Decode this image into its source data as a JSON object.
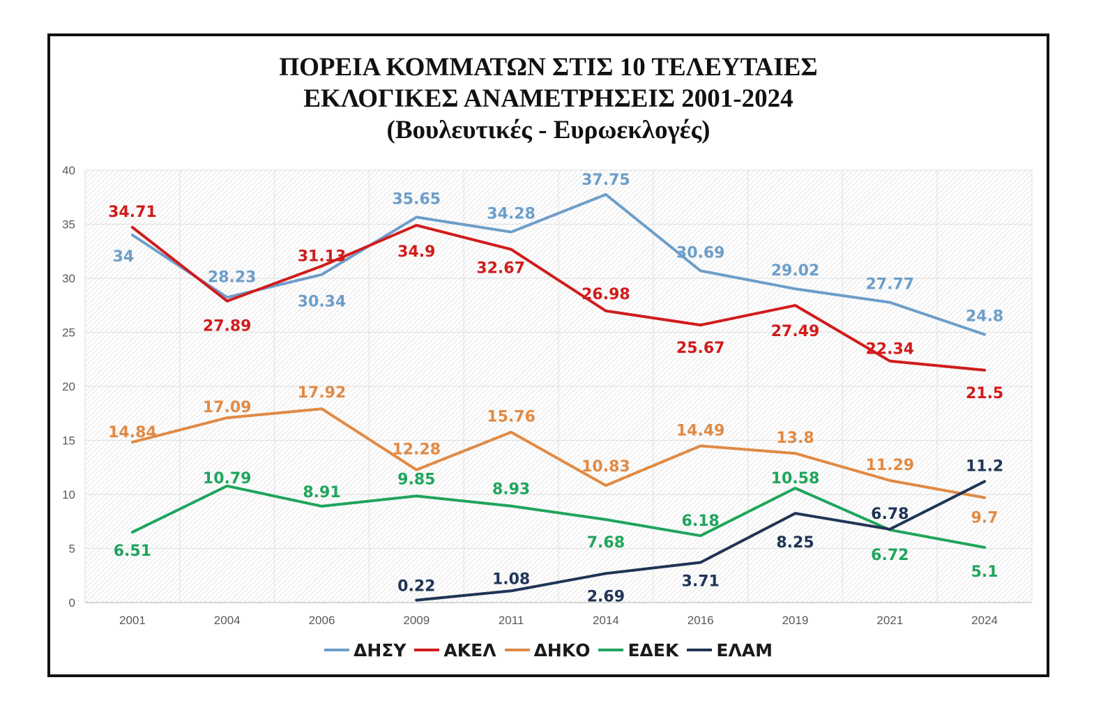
{
  "title_lines": [
    "ΠΟΡΕΙΑ ΚΟΜΜΑΤΩΝ ΣΤΙΣ 10 ΤΕΛΕΥΤΑΙΕΣ",
    "ΕΚΛΟΓΙΚΕΣ ΑΝΑΜΕΤΡΗΣΕΙΣ 2001-2024",
    "(Βουλευτικές - Ευρωεκλογές)"
  ],
  "chart_data": {
    "type": "line",
    "title": "ΠΟΡΕΙΑ ΚΟΜΜΑΤΩΝ ΣΤΙΣ 10 ΤΕΛΕΥΤΑΙΕΣ ΕΚΛΟΓΙΚΕΣ ΑΝΑΜΕΤΡΗΣΕΙΣ 2001-2024 (Βουλευτικές - Ευρωεκλογές)",
    "categories": [
      "2001",
      "2004",
      "2006",
      "2009",
      "2011",
      "2014",
      "2016",
      "2019",
      "2021",
      "2024"
    ],
    "ylim": [
      0,
      40
    ],
    "yticks": [
      "0",
      "5",
      "10",
      "15",
      "20",
      "25",
      "30",
      "35",
      "40"
    ],
    "grid": true,
    "legend_position": "bottom",
    "series": [
      {
        "name": "ΔΗΣΥ",
        "color": "#6d9ec9",
        "values": [
          34,
          28.23,
          30.34,
          35.65,
          34.28,
          37.75,
          30.69,
          29.02,
          27.77,
          24.8
        ],
        "labels": [
          "34",
          "28.23",
          "30.34",
          "35.65",
          "34.28",
          "37.75",
          "30.69",
          "29.02",
          "27.77",
          "24.8"
        ]
      },
      {
        "name": "ΑΚΕΛ",
        "color": "#d01c1c",
        "values": [
          34.71,
          27.89,
          31.13,
          34.9,
          32.67,
          26.98,
          25.67,
          27.49,
          22.34,
          21.5
        ],
        "labels": [
          "34.71",
          "27.89",
          "31.13",
          "34.9",
          "32.67",
          "26.98",
          "25.67",
          "27.49",
          "22.34",
          "21.5"
        ]
      },
      {
        "name": "ΔΗΚΟ",
        "color": "#e08a45",
        "values": [
          14.84,
          17.09,
          17.92,
          12.28,
          15.76,
          10.83,
          14.49,
          13.8,
          11.29,
          9.7
        ],
        "labels": [
          "14.84",
          "17.09",
          "17.92",
          "12.28",
          "15.76",
          "10.83",
          "14.49",
          "13.8",
          "11.29",
          "9.7"
        ]
      },
      {
        "name": "ΕΔΕΚ",
        "color": "#1fa55c",
        "values": [
          6.51,
          10.79,
          8.91,
          9.85,
          8.93,
          7.68,
          6.18,
          10.58,
          6.72,
          5.1
        ],
        "labels": [
          "6.51",
          "10.79",
          "8.91",
          "9.85",
          "8.93",
          "7.68",
          "6.18",
          "10.58",
          "6.72",
          "5.1"
        ]
      },
      {
        "name": "ΕΛΑΜ",
        "color": "#1f3456",
        "values": [
          null,
          null,
          null,
          0.22,
          1.08,
          2.69,
          3.71,
          8.25,
          6.78,
          11.2
        ],
        "labels": [
          null,
          null,
          null,
          "0.22",
          "1.08",
          "2.69",
          "3.71",
          "8.25",
          "6.78",
          "11.2"
        ]
      }
    ]
  }
}
